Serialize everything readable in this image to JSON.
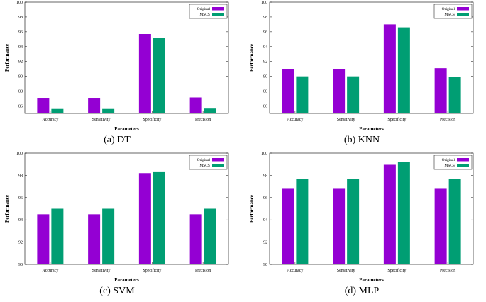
{
  "chart_data": [
    {
      "type": "bar",
      "caption": "(a) DT",
      "xlabel": "Parameters",
      "ylabel": "Performance",
      "categories": [
        "Accuracy",
        "Sensitivity",
        "Specificity",
        "Precision"
      ],
      "ylim": [
        85,
        100
      ],
      "yticks": [
        "86",
        "88",
        "90",
        "92",
        "94",
        "96",
        "98",
        "100"
      ],
      "ytick_values": [
        86,
        88,
        90,
        92,
        94,
        96,
        98,
        100
      ],
      "series": [
        {
          "name": "Original",
          "color": "#9400d3",
          "values": [
            87.1,
            87.1,
            95.7,
            87.15
          ]
        },
        {
          "name": "MSCS",
          "color": "#009e73",
          "values": [
            85.6,
            85.6,
            95.2,
            85.65
          ]
        }
      ]
    },
    {
      "type": "bar",
      "caption": "(b) KNN",
      "xlabel": "Parameters",
      "ylabel": "Performance",
      "categories": [
        "Accuracy",
        "Sensitivity",
        "Specificity",
        "Precision"
      ],
      "ylim": [
        85,
        100
      ],
      "yticks": [
        "86",
        "88",
        "90",
        "92",
        "94",
        "96",
        "98",
        "100"
      ],
      "ytick_values": [
        86,
        88,
        90,
        92,
        94,
        96,
        98,
        100
      ],
      "series": [
        {
          "name": "Original",
          "color": "#9400d3",
          "values": [
            91.0,
            91.0,
            97.0,
            91.1
          ]
        },
        {
          "name": "MSCS",
          "color": "#009e73",
          "values": [
            90.0,
            90.0,
            96.6,
            89.9
          ]
        }
      ]
    },
    {
      "type": "bar",
      "caption": "(c) SVM",
      "xlabel": "Parameters",
      "ylabel": "Performance",
      "categories": [
        "Accuracy",
        "Sensitivity",
        "Specificity",
        "Precision"
      ],
      "ylim": [
        90,
        100
      ],
      "yticks": [
        "90",
        "92",
        "94",
        "96",
        "98",
        "100"
      ],
      "ytick_values": [
        90,
        92,
        94,
        96,
        98,
        100
      ],
      "series": [
        {
          "name": "Original",
          "color": "#9400d3",
          "values": [
            94.5,
            94.5,
            98.2,
            94.5
          ]
        },
        {
          "name": "MSCS",
          "color": "#009e73",
          "values": [
            95.0,
            95.0,
            98.35,
            95.0
          ]
        }
      ]
    },
    {
      "type": "bar",
      "caption": "(d) MLP",
      "xlabel": "Parameters",
      "ylabel": "Performance",
      "categories": [
        "Accuracy",
        "Sensitivity",
        "Specificity",
        "Precision"
      ],
      "ylim": [
        90,
        100
      ],
      "yticks": [
        "90",
        "92",
        "94",
        "96",
        "98",
        "100"
      ],
      "ytick_values": [
        90,
        92,
        94,
        96,
        98,
        100
      ],
      "series": [
        {
          "name": "Original",
          "color": "#9400d3",
          "values": [
            96.85,
            96.85,
            98.95,
            96.85
          ]
        },
        {
          "name": "MSCS",
          "color": "#009e73",
          "values": [
            97.65,
            97.65,
            99.2,
            97.65
          ]
        }
      ]
    }
  ]
}
